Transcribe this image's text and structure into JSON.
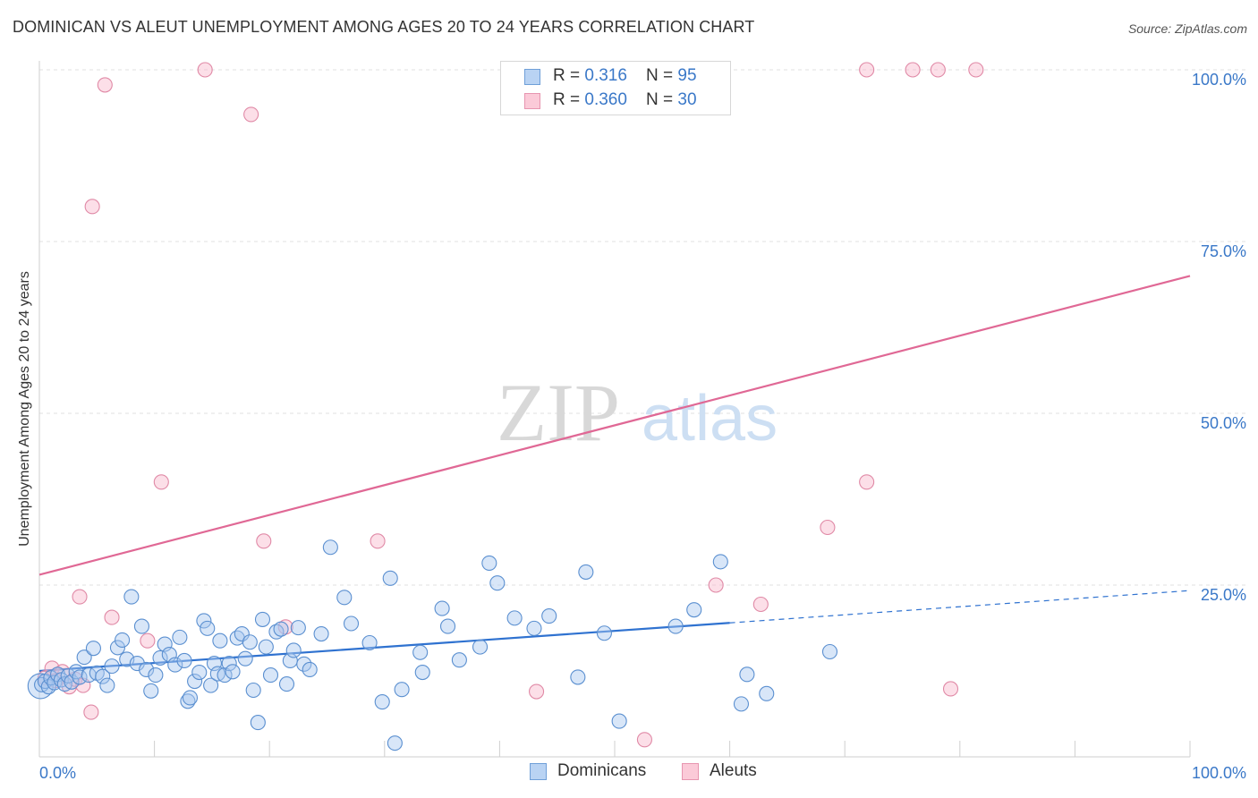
{
  "title": "DOMINICAN VS ALEUT UNEMPLOYMENT AMONG AGES 20 TO 24 YEARS CORRELATION CHART",
  "source": "Source: ZipAtlas.com",
  "watermark": {
    "zip": "ZIP",
    "atlas": "atlas"
  },
  "colors": {
    "blue_fill": "#a8c8f0",
    "blue_stroke": "#5a8fd0",
    "blue_line": "#2f72d0",
    "pink_fill": "#f8b9cc",
    "pink_stroke": "#e089a6",
    "pink_line": "#e06895",
    "tick_text": "#3a78c8",
    "grid": "#e0e0e0"
  },
  "legend": {
    "rows": [
      {
        "r_label": "R = ",
        "r_value": "0.316",
        "n_label": "N = ",
        "n_value": "95",
        "series": "blue"
      },
      {
        "r_label": "R = ",
        "r_value": "0.360",
        "n_label": "N = ",
        "n_value": "30",
        "series": "pink"
      }
    ]
  },
  "bottom_legend": [
    "Dominicans",
    "Aleuts"
  ],
  "chart_data": {
    "type": "scatter",
    "title": "DOMINICAN VS ALEUT UNEMPLOYMENT AMONG AGES 20 TO 24 YEARS CORRELATION CHART",
    "xlabel": "",
    "ylabel": "Unemployment Among Ages 20 to 24 years",
    "xlim": [
      0,
      100
    ],
    "ylim": [
      0,
      100
    ],
    "x_tick_labels": [
      "0.0%",
      "100.0%"
    ],
    "y_tick_labels": [
      "25.0%",
      "50.0%",
      "75.0%",
      "100.0%"
    ],
    "y_ticks": [
      25,
      50,
      75,
      100
    ],
    "grid": true,
    "legend_position": "top-center",
    "series": [
      {
        "name": "Dominicans",
        "color": "blue",
        "R": 0.316,
        "N": 95,
        "trend": {
          "x": [
            0,
            60
          ],
          "y": [
            12.5,
            19.5
          ],
          "dashed_extension": {
            "x": [
              60,
              100
            ],
            "y": [
              19.5,
              24.2
            ]
          }
        },
        "points": [
          [
            0.2,
            10.5
          ],
          [
            0.5,
            11.0
          ],
          [
            0.8,
            10.2
          ],
          [
            1.0,
            11.5
          ],
          [
            1.3,
            10.8
          ],
          [
            1.6,
            12.0
          ],
          [
            1.9,
            11.2
          ],
          [
            2.2,
            10.6
          ],
          [
            2.5,
            11.8
          ],
          [
            2.8,
            10.9
          ],
          [
            3.2,
            12.4
          ],
          [
            3.5,
            11.6
          ],
          [
            3.9,
            14.5
          ],
          [
            4.3,
            11.9
          ],
          [
            4.7,
            15.8
          ],
          [
            5.0,
            12.2
          ],
          [
            5.5,
            11.7
          ],
          [
            5.9,
            10.4
          ],
          [
            6.3,
            13.2
          ],
          [
            6.8,
            15.9
          ],
          [
            7.2,
            17.0
          ],
          [
            7.6,
            14.2
          ],
          [
            8.0,
            23.3
          ],
          [
            8.5,
            13.6
          ],
          [
            8.9,
            19.0
          ],
          [
            9.3,
            12.7
          ],
          [
            9.7,
            9.6
          ],
          [
            10.1,
            11.9
          ],
          [
            10.5,
            14.4
          ],
          [
            10.9,
            16.4
          ],
          [
            11.3,
            14.9
          ],
          [
            11.8,
            13.4
          ],
          [
            12.2,
            17.4
          ],
          [
            12.6,
            14.0
          ],
          [
            12.9,
            8.1
          ],
          [
            13.1,
            8.6
          ],
          [
            13.5,
            11.0
          ],
          [
            13.9,
            12.3
          ],
          [
            14.3,
            19.8
          ],
          [
            14.6,
            18.7
          ],
          [
            14.9,
            10.4
          ],
          [
            15.2,
            13.6
          ],
          [
            15.5,
            12.1
          ],
          [
            15.7,
            16.9
          ],
          [
            16.1,
            11.9
          ],
          [
            16.5,
            13.6
          ],
          [
            16.8,
            12.4
          ],
          [
            17.2,
            17.3
          ],
          [
            17.6,
            17.9
          ],
          [
            17.9,
            14.3
          ],
          [
            18.3,
            16.7
          ],
          [
            18.6,
            9.7
          ],
          [
            19.0,
            5.0
          ],
          [
            19.4,
            20.0
          ],
          [
            19.7,
            16.0
          ],
          [
            20.1,
            11.9
          ],
          [
            20.6,
            18.2
          ],
          [
            21.0,
            18.6
          ],
          [
            21.5,
            10.6
          ],
          [
            21.8,
            14.0
          ],
          [
            22.1,
            15.5
          ],
          [
            22.5,
            18.8
          ],
          [
            23.0,
            13.5
          ],
          [
            23.5,
            12.7
          ],
          [
            24.5,
            17.9
          ],
          [
            25.3,
            30.5
          ],
          [
            26.5,
            23.2
          ],
          [
            27.1,
            19.4
          ],
          [
            28.7,
            16.6
          ],
          [
            29.8,
            8.0
          ],
          [
            30.5,
            26.0
          ],
          [
            30.9,
            2.0
          ],
          [
            31.5,
            9.8
          ],
          [
            33.1,
            15.2
          ],
          [
            33.3,
            12.3
          ],
          [
            35.0,
            21.6
          ],
          [
            35.5,
            19.0
          ],
          [
            36.5,
            14.1
          ],
          [
            38.3,
            16.0
          ],
          [
            39.1,
            28.2
          ],
          [
            39.8,
            25.3
          ],
          [
            41.3,
            20.2
          ],
          [
            43.0,
            18.7
          ],
          [
            44.3,
            20.5
          ],
          [
            46.8,
            11.6
          ],
          [
            47.5,
            26.9
          ],
          [
            49.1,
            18.0
          ],
          [
            50.4,
            5.2
          ],
          [
            55.3,
            19.0
          ],
          [
            56.9,
            21.4
          ],
          [
            59.2,
            28.4
          ],
          [
            61.0,
            7.7
          ],
          [
            61.5,
            12.0
          ],
          [
            63.2,
            9.2
          ],
          [
            68.7,
            15.3
          ]
        ]
      },
      {
        "name": "Aleuts",
        "color": "pink",
        "R": 0.36,
        "N": 30,
        "trend": {
          "x": [
            0,
            100
          ],
          "y": [
            26.5,
            70.0
          ]
        },
        "points": [
          [
            0.5,
            11.5
          ],
          [
            1.1,
            12.9
          ],
          [
            1.4,
            11.1
          ],
          [
            2.0,
            12.4
          ],
          [
            2.6,
            10.2
          ],
          [
            3.1,
            11.3
          ],
          [
            3.5,
            23.3
          ],
          [
            3.8,
            10.4
          ],
          [
            4.5,
            6.5
          ],
          [
            4.6,
            80.1
          ],
          [
            5.7,
            97.8
          ],
          [
            6.3,
            20.3
          ],
          [
            9.4,
            16.9
          ],
          [
            10.6,
            40.0
          ],
          [
            14.4,
            100.0
          ],
          [
            18.4,
            93.5
          ],
          [
            19.5,
            31.4
          ],
          [
            21.4,
            18.9
          ],
          [
            29.4,
            31.4
          ],
          [
            43.2,
            9.5
          ],
          [
            52.6,
            2.5
          ],
          [
            58.8,
            25.0
          ],
          [
            62.7,
            22.2
          ],
          [
            68.5,
            33.4
          ],
          [
            71.9,
            40.0
          ],
          [
            71.9,
            100.0
          ],
          [
            75.9,
            100.0
          ],
          [
            78.1,
            100.0
          ],
          [
            79.2,
            9.9
          ],
          [
            81.4,
            100.0
          ]
        ]
      }
    ]
  }
}
